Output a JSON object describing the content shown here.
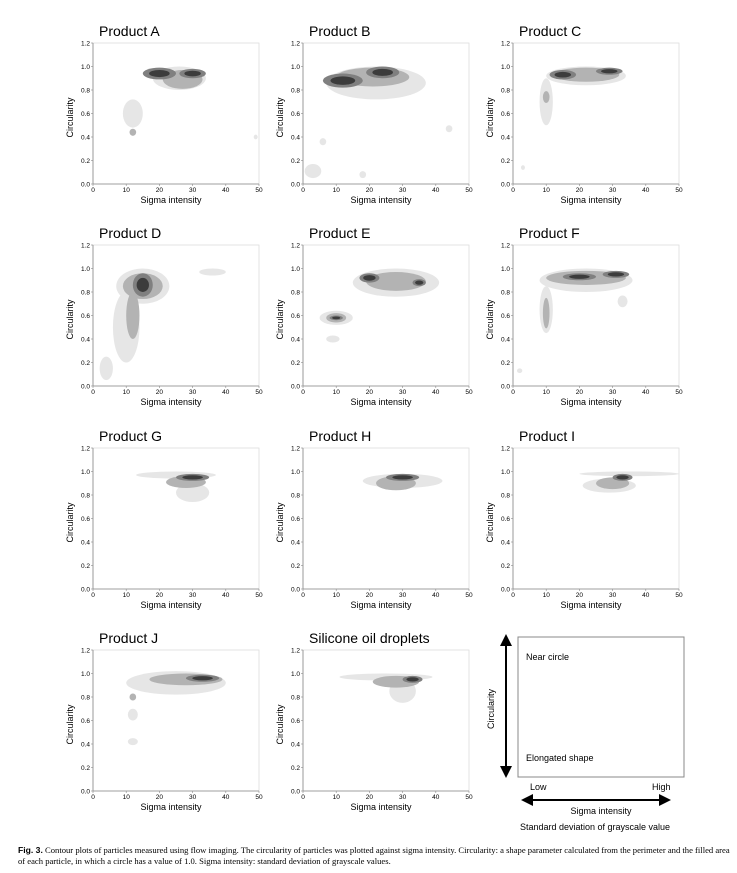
{
  "chart_data": [
    {
      "type": "contour",
      "title": "Product A",
      "xlabel": "Sigma intensity",
      "ylabel": "Circularity",
      "xlim": [
        0,
        50
      ],
      "ylim": [
        0,
        1.2
      ],
      "xticks": [
        0,
        10,
        20,
        30,
        40,
        50
      ],
      "yticks": [
        0.0,
        0.2,
        0.4,
        0.6,
        0.8,
        1.0,
        1.2
      ],
      "blobs": [
        [
          26,
          0.9,
          8,
          0.1,
          1
        ],
        [
          12,
          0.6,
          3,
          0.12,
          1
        ],
        [
          12,
          0.44,
          1,
          0.03,
          2
        ],
        [
          49,
          0.4,
          0.6,
          0.02,
          1
        ],
        [
          27,
          0.89,
          6,
          0.08,
          2
        ],
        [
          20,
          0.94,
          5,
          0.05,
          3
        ],
        [
          30,
          0.94,
          4,
          0.04,
          3
        ]
      ]
    },
    {
      "type": "contour",
      "title": "Product B",
      "xlabel": "Sigma intensity",
      "ylabel": "Circularity",
      "xlim": [
        0,
        50
      ],
      "ylim": [
        0,
        1.2
      ],
      "xticks": [
        0,
        10,
        20,
        30,
        40,
        50
      ],
      "yticks": [
        0.0,
        0.2,
        0.4,
        0.6,
        0.8,
        1.0,
        1.2
      ],
      "blobs": [
        [
          22,
          0.86,
          15,
          0.14,
          1
        ],
        [
          3,
          0.11,
          2.5,
          0.06,
          1
        ],
        [
          6,
          0.36,
          1,
          0.03,
          1
        ],
        [
          18,
          0.08,
          1,
          0.03,
          1
        ],
        [
          44,
          0.47,
          1,
          0.03,
          1
        ],
        [
          21,
          0.91,
          11,
          0.08,
          2
        ],
        [
          12,
          0.88,
          6,
          0.06,
          3
        ],
        [
          24,
          0.95,
          5,
          0.05,
          3
        ]
      ]
    },
    {
      "type": "contour",
      "title": "Product C",
      "xlabel": "Sigma intensity",
      "ylabel": "Circularity",
      "xlim": [
        0,
        50
      ],
      "ylim": [
        0,
        1.2
      ],
      "xticks": [
        0,
        10,
        20,
        30,
        40,
        50
      ],
      "yticks": [
        0.0,
        0.2,
        0.4,
        0.6,
        0.8,
        1.0,
        1.2
      ],
      "blobs": [
        [
          22,
          0.92,
          12,
          0.08,
          1
        ],
        [
          10,
          0.7,
          2,
          0.2,
          1
        ],
        [
          3,
          0.14,
          0.6,
          0.02,
          1
        ],
        [
          22,
          0.93,
          10,
          0.06,
          2
        ],
        [
          10,
          0.74,
          1,
          0.05,
          2
        ],
        [
          15,
          0.93,
          4,
          0.04,
          3
        ],
        [
          29,
          0.96,
          4,
          0.03,
          3
        ]
      ]
    },
    {
      "type": "contour",
      "title": "Product D",
      "xlabel": "Sigma intensity",
      "ylabel": "Circularity",
      "xlim": [
        0,
        50
      ],
      "ylim": [
        0,
        1.2
      ],
      "xticks": [
        0,
        10,
        20,
        30,
        40,
        50
      ],
      "yticks": [
        0.0,
        0.2,
        0.4,
        0.6,
        0.8,
        1.0,
        1.2
      ],
      "blobs": [
        [
          15,
          0.85,
          8,
          0.15,
          1
        ],
        [
          10,
          0.5,
          4,
          0.3,
          1
        ],
        [
          4,
          0.15,
          2,
          0.1,
          1
        ],
        [
          36,
          0.97,
          4,
          0.03,
          1
        ],
        [
          15,
          0.85,
          6,
          0.11,
          2
        ],
        [
          12,
          0.6,
          2,
          0.2,
          2
        ],
        [
          15,
          0.86,
          3,
          0.1,
          3
        ]
      ]
    },
    {
      "type": "contour",
      "title": "Product E",
      "xlabel": "Sigma intensity",
      "ylabel": "Circularity",
      "xlim": [
        0,
        50
      ],
      "ylim": [
        0,
        1.2
      ],
      "xticks": [
        0,
        10,
        20,
        30,
        40,
        50
      ],
      "yticks": [
        0.0,
        0.2,
        0.4,
        0.6,
        0.8,
        1.0,
        1.2
      ],
      "blobs": [
        [
          28,
          0.88,
          13,
          0.12,
          1
        ],
        [
          10,
          0.58,
          5,
          0.06,
          1
        ],
        [
          9,
          0.4,
          2,
          0.03,
          1
        ],
        [
          28,
          0.89,
          9,
          0.08,
          2
        ],
        [
          10,
          0.58,
          3,
          0.04,
          2
        ],
        [
          20,
          0.92,
          3,
          0.04,
          3
        ],
        [
          35,
          0.88,
          2,
          0.03,
          3
        ],
        [
          10,
          0.58,
          2,
          0.02,
          3
        ]
      ]
    },
    {
      "type": "contour",
      "title": "Product F",
      "xlabel": "Sigma intensity",
      "ylabel": "Circularity",
      "xlim": [
        0,
        50
      ],
      "ylim": [
        0,
        1.2
      ],
      "xticks": [
        0,
        10,
        20,
        30,
        40,
        50
      ],
      "yticks": [
        0.0,
        0.2,
        0.4,
        0.6,
        0.8,
        1.0,
        1.2
      ],
      "blobs": [
        [
          22,
          0.9,
          14,
          0.1,
          1
        ],
        [
          10,
          0.65,
          2,
          0.2,
          1
        ],
        [
          2,
          0.13,
          0.8,
          0.02,
          1
        ],
        [
          33,
          0.72,
          1.5,
          0.05,
          1
        ],
        [
          22,
          0.92,
          12,
          0.06,
          2
        ],
        [
          10,
          0.62,
          1,
          0.13,
          2
        ],
        [
          20,
          0.93,
          5,
          0.03,
          3
        ],
        [
          31,
          0.95,
          4,
          0.03,
          3
        ]
      ]
    },
    {
      "type": "contour",
      "title": "Product G",
      "xlabel": "Sigma intensity",
      "ylabel": "Circularity",
      "xlim": [
        0,
        50
      ],
      "ylim": [
        0,
        1.2
      ],
      "xticks": [
        0,
        10,
        20,
        30,
        40,
        50
      ],
      "yticks": [
        0.0,
        0.2,
        0.4,
        0.6,
        0.8,
        1.0,
        1.2
      ],
      "blobs": [
        [
          25,
          0.97,
          12,
          0.03,
          1
        ],
        [
          30,
          0.82,
          5,
          0.08,
          1
        ],
        [
          28,
          0.91,
          6,
          0.05,
          2
        ],
        [
          30,
          0.95,
          5,
          0.03,
          3
        ]
      ]
    },
    {
      "type": "contour",
      "title": "Product H",
      "xlabel": "Sigma intensity",
      "ylabel": "Circularity",
      "xlim": [
        0,
        50
      ],
      "ylim": [
        0,
        1.2
      ],
      "xticks": [
        0,
        10,
        20,
        30,
        40,
        50
      ],
      "yticks": [
        0.0,
        0.2,
        0.4,
        0.6,
        0.8,
        1.0,
        1.2
      ],
      "blobs": [
        [
          30,
          0.92,
          12,
          0.06,
          1
        ],
        [
          28,
          0.9,
          6,
          0.06,
          2
        ],
        [
          30,
          0.95,
          5,
          0.03,
          3
        ]
      ]
    },
    {
      "type": "contour",
      "title": "Product I",
      "xlabel": "Sigma intensity",
      "ylabel": "Circularity",
      "xlim": [
        0,
        50
      ],
      "ylim": [
        0,
        1.2
      ],
      "xticks": [
        0,
        10,
        20,
        30,
        40,
        50
      ],
      "yticks": [
        0.0,
        0.2,
        0.4,
        0.6,
        0.8,
        1.0,
        1.2
      ],
      "blobs": [
        [
          35,
          0.98,
          15,
          0.02,
          1
        ],
        [
          29,
          0.88,
          8,
          0.06,
          1
        ],
        [
          30,
          0.9,
          5,
          0.05,
          2
        ],
        [
          33,
          0.95,
          3,
          0.03,
          3
        ]
      ]
    },
    {
      "type": "contour",
      "title": "Product J",
      "xlabel": "Sigma intensity",
      "ylabel": "Circularity",
      "xlim": [
        0,
        50
      ],
      "ylim": [
        0,
        1.2
      ],
      "xticks": [
        0,
        10,
        20,
        30,
        40,
        50
      ],
      "yticks": [
        0.0,
        0.2,
        0.4,
        0.6,
        0.8,
        1.0,
        1.2
      ],
      "blobs": [
        [
          25,
          0.92,
          15,
          0.1,
          1
        ],
        [
          12,
          0.42,
          1.5,
          0.03,
          1
        ],
        [
          12,
          0.65,
          1.5,
          0.05,
          1
        ],
        [
          28,
          0.95,
          11,
          0.05,
          2
        ],
        [
          12,
          0.8,
          1,
          0.03,
          2
        ],
        [
          33,
          0.96,
          5,
          0.03,
          3
        ]
      ]
    },
    {
      "type": "contour",
      "title": "Silicone oil droplets",
      "xlabel": "Sigma intensity",
      "ylabel": "Circularity",
      "xlim": [
        0,
        50
      ],
      "ylim": [
        0,
        1.2
      ],
      "xticks": [
        0,
        10,
        20,
        30,
        40,
        50
      ],
      "yticks": [
        0.0,
        0.2,
        0.4,
        0.6,
        0.8,
        1.0,
        1.2
      ],
      "blobs": [
        [
          25,
          0.97,
          14,
          0.03,
          1
        ],
        [
          30,
          0.85,
          4,
          0.1,
          1
        ],
        [
          28,
          0.93,
          7,
          0.05,
          2
        ],
        [
          33,
          0.95,
          3,
          0.03,
          3
        ]
      ]
    }
  ],
  "legend": {
    "ylabel": "Circularity",
    "top": "Near circle",
    "bottom": "Elongated shape",
    "low": "Low",
    "high": "High",
    "xlabel": "Sigma intensity",
    "sublabel": "Standard deviation of grayscale value"
  },
  "caption": {
    "label": "Fig. 3.",
    "text": "Contour plots of particles measured using flow imaging. The circularity of particles was plotted against sigma intensity. Circularity: a shape parameter calculated from the perimeter and the filled area of each particle, in which a circle has a value of 1.0. Sigma intensity: standard deviation of grayscale values."
  },
  "colors": {
    "level1": "#e6e6e6",
    "level2": "#b3b3b3",
    "level3": "#808080",
    "level4": "#3c3c3c",
    "grid": "#dddddd",
    "axis": "#888888"
  }
}
